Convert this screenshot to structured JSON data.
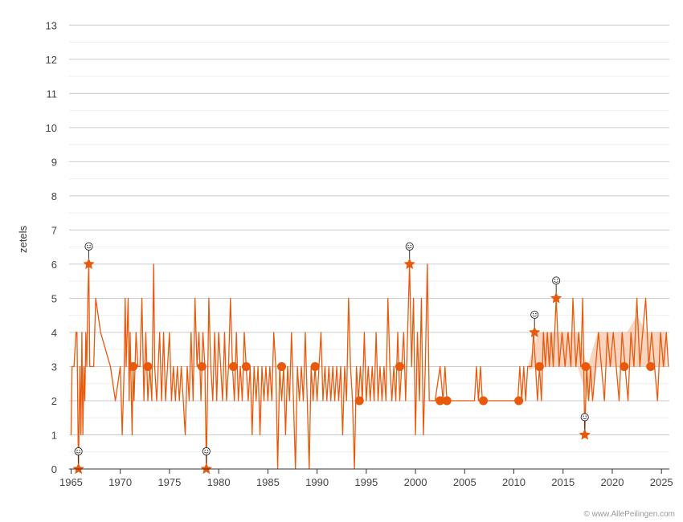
{
  "chart_data": {
    "type": "line",
    "ylabel": "zetels",
    "xlim": [
      1964.8,
      2025.8
    ],
    "ylim": [
      0,
      13.5
    ],
    "y_ticks": [
      "0",
      "1",
      "2",
      "3",
      "4",
      "5",
      "6",
      "7",
      "8",
      "9",
      "10",
      "11",
      "12",
      "13"
    ],
    "x_ticks": [
      "1965",
      "1970",
      "1975",
      "1980",
      "1985",
      "1990",
      "1995",
      "2000",
      "2005",
      "2010",
      "2015",
      "2020",
      "2025"
    ],
    "grid": true,
    "legend": "none",
    "series_color": "#e8590c",
    "fill_color": "#f5b892",
    "series": [
      {
        "values": [
          [
            1965.0,
            1
          ],
          [
            1965.1,
            3
          ],
          [
            1965.3,
            3
          ],
          [
            1965.5,
            4
          ],
          [
            1965.6,
            4
          ],
          [
            1965.75,
            0
          ],
          [
            1965.9,
            3
          ],
          [
            1966.0,
            1
          ],
          [
            1966.1,
            4
          ],
          [
            1966.2,
            1
          ],
          [
            1966.3,
            3
          ],
          [
            1966.4,
            2
          ],
          [
            1966.5,
            4
          ],
          [
            1966.6,
            3
          ],
          [
            1966.7,
            5
          ],
          [
            1966.8,
            6
          ],
          [
            1966.9,
            3
          ],
          [
            1967.0,
            3
          ],
          [
            1967.3,
            3
          ],
          [
            1967.5,
            5
          ],
          [
            1968.0,
            4
          ],
          [
            1969.0,
            3
          ],
          [
            1969.5,
            2
          ],
          [
            1970.0,
            3
          ],
          [
            1970.2,
            1
          ],
          [
            1970.4,
            3
          ],
          [
            1970.5,
            5
          ],
          [
            1970.6,
            3
          ],
          [
            1970.8,
            5
          ],
          [
            1970.9,
            2
          ],
          [
            1971.0,
            4
          ],
          [
            1971.2,
            1
          ],
          [
            1971.3,
            3
          ],
          [
            1971.4,
            2
          ],
          [
            1971.6,
            4
          ],
          [
            1971.8,
            3
          ],
          [
            1972.0,
            3
          ],
          [
            1972.2,
            5
          ],
          [
            1972.4,
            2
          ],
          [
            1972.6,
            4
          ],
          [
            1972.8,
            2
          ],
          [
            1973.0,
            3
          ],
          [
            1973.2,
            2
          ],
          [
            1973.4,
            6
          ],
          [
            1973.5,
            3
          ],
          [
            1973.7,
            2
          ],
          [
            1974.0,
            4
          ],
          [
            1974.2,
            2
          ],
          [
            1974.4,
            4
          ],
          [
            1974.6,
            2
          ],
          [
            1974.8,
            3
          ],
          [
            1975.0,
            4
          ],
          [
            1975.2,
            2
          ],
          [
            1975.4,
            3
          ],
          [
            1975.6,
            2
          ],
          [
            1975.8,
            3
          ],
          [
            1976.0,
            2
          ],
          [
            1976.2,
            3
          ],
          [
            1976.4,
            2
          ],
          [
            1976.6,
            1
          ],
          [
            1976.8,
            3
          ],
          [
            1977.0,
            2
          ],
          [
            1977.2,
            4
          ],
          [
            1977.4,
            2
          ],
          [
            1977.6,
            5
          ],
          [
            1977.8,
            3
          ],
          [
            1978.0,
            4
          ],
          [
            1978.2,
            2
          ],
          [
            1978.4,
            4
          ],
          [
            1978.6,
            3
          ],
          [
            1978.75,
            0
          ],
          [
            1978.9,
            3
          ],
          [
            1979.0,
            5
          ],
          [
            1979.2,
            3
          ],
          [
            1979.4,
            2
          ],
          [
            1979.6,
            4
          ],
          [
            1979.8,
            2
          ],
          [
            1980.0,
            4
          ],
          [
            1980.2,
            3
          ],
          [
            1980.4,
            2
          ],
          [
            1980.6,
            4
          ],
          [
            1980.8,
            2
          ],
          [
            1981.0,
            3
          ],
          [
            1981.2,
            5
          ],
          [
            1981.4,
            3
          ],
          [
            1981.6,
            2
          ],
          [
            1981.8,
            4
          ],
          [
            1982.0,
            2
          ],
          [
            1982.2,
            3
          ],
          [
            1982.4,
            2
          ],
          [
            1982.6,
            4
          ],
          [
            1982.8,
            3
          ],
          [
            1983.0,
            2
          ],
          [
            1983.2,
            3
          ],
          [
            1983.4,
            1
          ],
          [
            1983.6,
            3
          ],
          [
            1983.8,
            2
          ],
          [
            1984.0,
            3
          ],
          [
            1984.2,
            1
          ],
          [
            1984.4,
            3
          ],
          [
            1984.6,
            2
          ],
          [
            1984.8,
            3
          ],
          [
            1985.0,
            2
          ],
          [
            1985.2,
            3
          ],
          [
            1985.4,
            2
          ],
          [
            1985.6,
            4
          ],
          [
            1985.8,
            3
          ],
          [
            1986.0,
            0
          ],
          [
            1986.2,
            3
          ],
          [
            1986.4,
            2
          ],
          [
            1986.6,
            3
          ],
          [
            1986.8,
            1
          ],
          [
            1987.0,
            3
          ],
          [
            1987.2,
            2
          ],
          [
            1987.4,
            4
          ],
          [
            1987.6,
            2
          ],
          [
            1987.8,
            0
          ],
          [
            1988.0,
            3
          ],
          [
            1988.2,
            2
          ],
          [
            1988.4,
            3
          ],
          [
            1988.6,
            2
          ],
          [
            1988.8,
            4
          ],
          [
            1989.0,
            2
          ],
          [
            1989.2,
            0
          ],
          [
            1989.4,
            3
          ],
          [
            1989.6,
            2
          ],
          [
            1989.8,
            3
          ],
          [
            1990.0,
            2
          ],
          [
            1990.2,
            3
          ],
          [
            1990.4,
            4
          ],
          [
            1990.6,
            2
          ],
          [
            1990.8,
            3
          ],
          [
            1991.0,
            2
          ],
          [
            1991.2,
            3
          ],
          [
            1991.4,
            2
          ],
          [
            1991.6,
            3
          ],
          [
            1991.8,
            2
          ],
          [
            1992.0,
            3
          ],
          [
            1992.2,
            2
          ],
          [
            1992.4,
            3
          ],
          [
            1992.6,
            1
          ],
          [
            1992.8,
            3
          ],
          [
            1993.0,
            2
          ],
          [
            1993.2,
            5
          ],
          [
            1993.4,
            3
          ],
          [
            1993.6,
            2
          ],
          [
            1993.8,
            0
          ],
          [
            1994.0,
            3
          ],
          [
            1994.2,
            2
          ],
          [
            1994.4,
            3
          ],
          [
            1994.6,
            2
          ],
          [
            1994.8,
            4
          ],
          [
            1995.0,
            2
          ],
          [
            1995.2,
            3
          ],
          [
            1995.4,
            2
          ],
          [
            1995.6,
            3
          ],
          [
            1995.8,
            2
          ],
          [
            1996.0,
            4
          ],
          [
            1996.2,
            2
          ],
          [
            1996.4,
            3
          ],
          [
            1996.6,
            2
          ],
          [
            1996.8,
            3
          ],
          [
            1997.0,
            2
          ],
          [
            1997.2,
            5
          ],
          [
            1997.4,
            3
          ],
          [
            1997.6,
            2
          ],
          [
            1997.8,
            3
          ],
          [
            1998.0,
            2
          ],
          [
            1998.2,
            4
          ],
          [
            1998.4,
            2
          ],
          [
            1998.6,
            3
          ],
          [
            1998.8,
            4
          ],
          [
            1999.0,
            2
          ],
          [
            1999.2,
            4
          ],
          [
            1999.4,
            6
          ],
          [
            1999.6,
            3
          ],
          [
            1999.8,
            5
          ],
          [
            2000.0,
            1
          ],
          [
            2000.2,
            4
          ],
          [
            2000.4,
            2
          ],
          [
            2000.6,
            5
          ],
          [
            2000.8,
            1
          ],
          [
            2001.0,
            3
          ],
          [
            2001.2,
            6
          ],
          [
            2001.4,
            2
          ],
          [
            2002.0,
            2
          ],
          [
            2002.5,
            3
          ],
          [
            2002.8,
            2
          ],
          [
            2003.0,
            3
          ],
          [
            2003.2,
            2
          ],
          [
            2005.0,
            2
          ],
          [
            2006.0,
            2
          ],
          [
            2006.2,
            3
          ],
          [
            2006.4,
            2
          ],
          [
            2006.6,
            3
          ],
          [
            2006.8,
            2
          ],
          [
            2010.0,
            2
          ],
          [
            2010.4,
            2
          ],
          [
            2010.6,
            3
          ],
          [
            2010.8,
            2
          ],
          [
            2011.0,
            3
          ],
          [
            2011.2,
            2
          ],
          [
            2011.4,
            3
          ],
          [
            2011.6,
            3
          ],
          [
            2011.8,
            3
          ],
          [
            2012.0,
            4
          ],
          [
            2012.2,
            3
          ],
          [
            2012.4,
            2
          ],
          [
            2012.6,
            3
          ],
          [
            2012.8,
            2
          ],
          [
            2013.0,
            4
          ],
          [
            2013.2,
            3
          ],
          [
            2013.4,
            4
          ],
          [
            2013.6,
            3
          ],
          [
            2013.8,
            4
          ],
          [
            2014.0,
            3
          ],
          [
            2014.3,
            5
          ],
          [
            2014.6,
            3
          ],
          [
            2014.9,
            4
          ],
          [
            2015.2,
            3
          ],
          [
            2015.5,
            4
          ],
          [
            2015.8,
            3
          ],
          [
            2016.0,
            5
          ],
          [
            2016.3,
            3
          ],
          [
            2016.6,
            4
          ],
          [
            2016.8,
            3
          ],
          [
            2017.0,
            5
          ],
          [
            2017.2,
            1
          ],
          [
            2017.4,
            3
          ],
          [
            2017.6,
            2
          ],
          [
            2017.8,
            3
          ],
          [
            2018.0,
            2
          ],
          [
            2018.3,
            3
          ],
          [
            2018.6,
            4
          ],
          [
            2018.9,
            3
          ],
          [
            2019.2,
            2
          ],
          [
            2019.5,
            4
          ],
          [
            2019.8,
            3
          ],
          [
            2020.1,
            4
          ],
          [
            2020.4,
            3
          ],
          [
            2020.7,
            2
          ],
          [
            2021.0,
            4
          ],
          [
            2021.3,
            3
          ],
          [
            2021.6,
            2
          ],
          [
            2021.9,
            4
          ],
          [
            2022.2,
            3
          ],
          [
            2022.5,
            5
          ],
          [
            2022.8,
            3
          ],
          [
            2023.1,
            4
          ],
          [
            2023.4,
            5
          ],
          [
            2023.7,
            3
          ],
          [
            2024.0,
            4
          ],
          [
            2024.3,
            3
          ],
          [
            2024.6,
            2
          ],
          [
            2024.9,
            4
          ],
          [
            2025.2,
            3
          ],
          [
            2025.5,
            4
          ],
          [
            2025.7,
            3
          ]
        ]
      }
    ],
    "band": [
      [
        2011.5,
        2.9,
        3.1
      ],
      [
        2012.5,
        3,
        4
      ],
      [
        2013.5,
        3,
        4
      ],
      [
        2014.5,
        3,
        4
      ],
      [
        2015.5,
        3,
        4
      ],
      [
        2016.5,
        3,
        4
      ],
      [
        2017.5,
        2,
        3
      ],
      [
        2018.5,
        3,
        4
      ],
      [
        2019.5,
        3,
        4
      ],
      [
        2020.5,
        3,
        4
      ],
      [
        2021.5,
        3,
        4
      ],
      [
        2022.5,
        3,
        4.5
      ],
      [
        2023.5,
        3,
        4
      ],
      [
        2024.5,
        3,
        4
      ],
      [
        2025.5,
        3,
        4
      ]
    ],
    "highlight_dots": [
      [
        1971.3,
        3
      ],
      [
        1972.8,
        3
      ],
      [
        1978.3,
        3
      ],
      [
        1981.5,
        3
      ],
      [
        1982.8,
        3
      ],
      [
        1986.4,
        3
      ],
      [
        1989.8,
        3
      ],
      [
        1994.3,
        2
      ],
      [
        1998.4,
        3
      ],
      [
        2002.5,
        2
      ],
      [
        2003.2,
        2
      ],
      [
        2006.9,
        2
      ],
      [
        2010.5,
        2
      ],
      [
        2012.6,
        3
      ],
      [
        2017.3,
        3
      ],
      [
        2021.2,
        3
      ],
      [
        2023.9,
        3
      ]
    ],
    "extremes": [
      {
        "x": 1965.75,
        "y": 0,
        "kind": "low"
      },
      {
        "x": 1966.8,
        "y": 6,
        "kind": "high"
      },
      {
        "x": 1978.75,
        "y": 0,
        "kind": "low"
      },
      {
        "x": 1999.4,
        "y": 6,
        "kind": "high"
      },
      {
        "x": 2012.1,
        "y": 4,
        "kind": "high"
      },
      {
        "x": 2014.3,
        "y": 5,
        "kind": "high"
      },
      {
        "x": 2017.2,
        "y": 1,
        "kind": "low"
      }
    ],
    "marker_icon": "smiley-icon"
  },
  "credit": "© www.AllePeilingen.com"
}
